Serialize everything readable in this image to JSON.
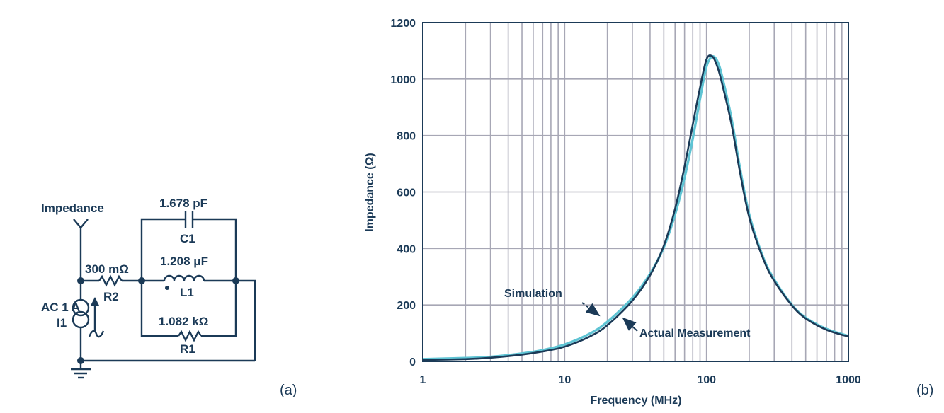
{
  "circuit": {
    "impedance_label": "Impedance",
    "source_label": "AC 1 A",
    "source_name": "I1",
    "r2_value": "300 mΩ",
    "r2_name": "R2",
    "c1_value": "1.678 pF",
    "c1_name": "C1",
    "l1_value": "1.208 μF",
    "l1_name": "L1",
    "r1_value": "1.082 kΩ",
    "r1_name": "R1",
    "panel_label": "(a)"
  },
  "panel_b_label": "(b)",
  "colors": {
    "simulation": "#5fc4d4",
    "measurement": "#1b3a57",
    "text": "#1b3a57",
    "grid": "#a7a7b5"
  },
  "chart_data": {
    "type": "line",
    "title": "",
    "xlabel": "Frequency (MHz)",
    "ylabel": "Impedance (Ω)",
    "xscale": "log",
    "xlim": [
      1,
      1000
    ],
    "ylim": [
      0,
      1200
    ],
    "x_ticks": [
      1,
      10,
      100,
      1000
    ],
    "x_tick_labels": [
      "1",
      "10",
      "100",
      "1000"
    ],
    "y_ticks": [
      0,
      200,
      400,
      600,
      800,
      1000,
      1200
    ],
    "y_tick_labels": [
      "0",
      "200",
      "400",
      "600",
      "800",
      "1000",
      "1200"
    ],
    "grid": true,
    "x": [
      1,
      2,
      3,
      5,
      7,
      10,
      15,
      20,
      30,
      40,
      50,
      60,
      70,
      80,
      90,
      100,
      110,
      120,
      130,
      150,
      170,
      200,
      250,
      300,
      400,
      500,
      700,
      1000
    ],
    "series": [
      {
        "name": "Simulation",
        "values": [
          8,
          12,
          16,
          28,
          40,
          60,
          98,
          140,
          225,
          310,
          405,
          520,
          650,
          790,
          930,
          1045,
          1080,
          1060,
          1000,
          860,
          700,
          520,
          370,
          290,
          200,
          155,
          115,
          90
        ]
      },
      {
        "name": "Actual Measurement",
        "values": [
          5,
          8,
          13,
          24,
          35,
          52,
          88,
          128,
          215,
          305,
          410,
          540,
          690,
          840,
          970,
          1070,
          1080,
          1040,
          975,
          840,
          685,
          510,
          365,
          285,
          198,
          152,
          112,
          88
        ]
      }
    ],
    "annotations": [
      {
        "text": "Simulation",
        "series": "Simulation"
      },
      {
        "text": "Actual Measurement",
        "series": "Actual Measurement"
      }
    ]
  }
}
